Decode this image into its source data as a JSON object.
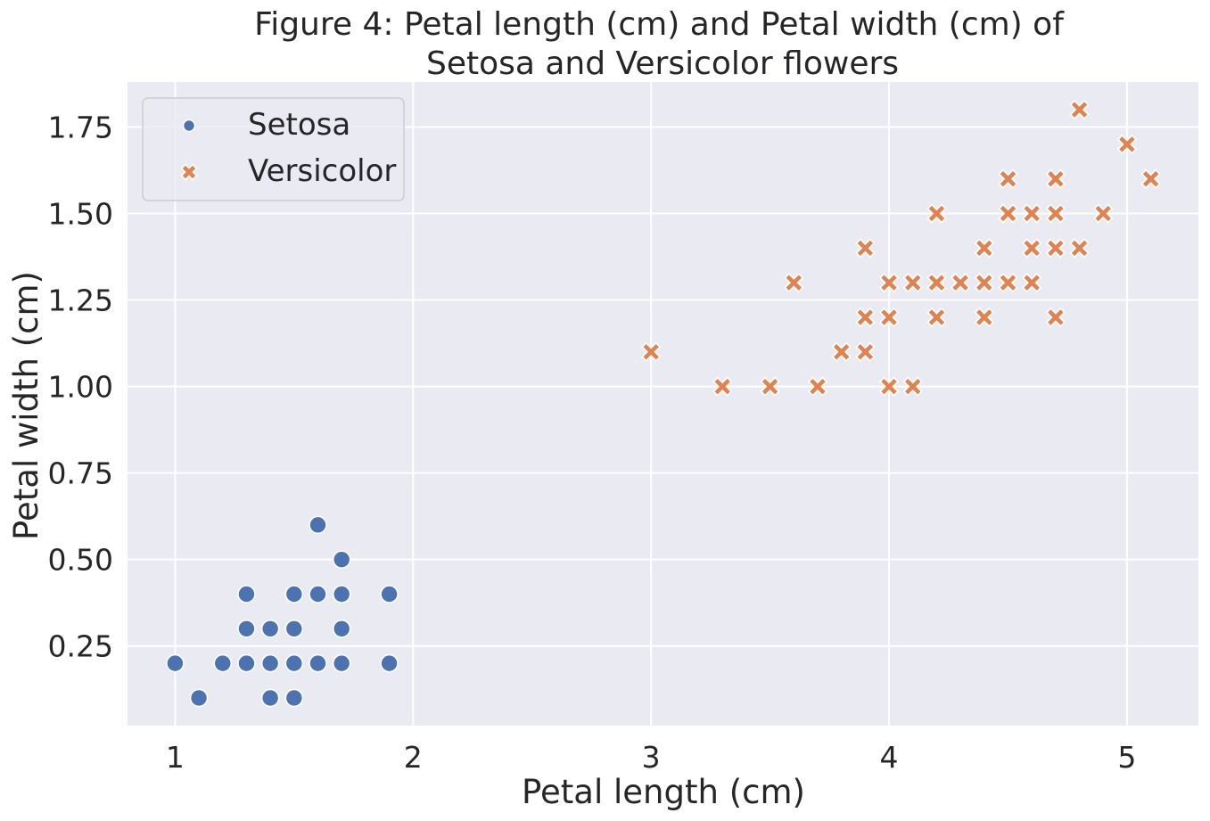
{
  "chart_data": {
    "type": "scatter",
    "title": [
      "Figure 4: Petal length (cm) and Petal width (cm) of",
      "Setosa and Versicolor flowers"
    ],
    "xlabel": "Petal length (cm)",
    "ylabel": "Petal width (cm)",
    "xlim": [
      0.8,
      5.3
    ],
    "ylim": [
      0.02,
      1.88
    ],
    "xticks": [
      1,
      2,
      3,
      4,
      5
    ],
    "xtick_labels": [
      "1",
      "2",
      "3",
      "4",
      "5"
    ],
    "yticks": [
      0.25,
      0.5,
      0.75,
      1.0,
      1.25,
      1.5,
      1.75
    ],
    "ytick_labels": [
      "0.25",
      "0.50",
      "0.75",
      "1.00",
      "1.25",
      "1.50",
      "1.75"
    ],
    "grid": true,
    "legend_position": "top-left",
    "series": [
      {
        "name": "Setosa",
        "marker": "circle",
        "color": "#4c72b0",
        "points": [
          [
            1.0,
            0.2
          ],
          [
            1.1,
            0.1
          ],
          [
            1.2,
            0.2
          ],
          [
            1.3,
            0.2
          ],
          [
            1.3,
            0.3
          ],
          [
            1.3,
            0.4
          ],
          [
            1.4,
            0.1
          ],
          [
            1.4,
            0.2
          ],
          [
            1.4,
            0.3
          ],
          [
            1.5,
            0.1
          ],
          [
            1.5,
            0.2
          ],
          [
            1.5,
            0.3
          ],
          [
            1.5,
            0.4
          ],
          [
            1.6,
            0.2
          ],
          [
            1.6,
            0.4
          ],
          [
            1.6,
            0.6
          ],
          [
            1.7,
            0.2
          ],
          [
            1.7,
            0.3
          ],
          [
            1.7,
            0.4
          ],
          [
            1.7,
            0.5
          ],
          [
            1.9,
            0.2
          ],
          [
            1.9,
            0.4
          ]
        ]
      },
      {
        "name": "Versicolor",
        "marker": "x",
        "color": "#dd8452",
        "points": [
          [
            3.0,
            1.1
          ],
          [
            3.3,
            1.0
          ],
          [
            3.5,
            1.0
          ],
          [
            3.6,
            1.3
          ],
          [
            3.7,
            1.0
          ],
          [
            3.8,
            1.1
          ],
          [
            3.9,
            1.1
          ],
          [
            3.9,
            1.2
          ],
          [
            3.9,
            1.4
          ],
          [
            4.0,
            1.0
          ],
          [
            4.0,
            1.2
          ],
          [
            4.0,
            1.3
          ],
          [
            4.1,
            1.0
          ],
          [
            4.1,
            1.3
          ],
          [
            4.2,
            1.2
          ],
          [
            4.2,
            1.3
          ],
          [
            4.2,
            1.5
          ],
          [
            4.3,
            1.3
          ],
          [
            4.4,
            1.2
          ],
          [
            4.4,
            1.3
          ],
          [
            4.4,
            1.4
          ],
          [
            4.5,
            1.3
          ],
          [
            4.5,
            1.5
          ],
          [
            4.5,
            1.6
          ],
          [
            4.6,
            1.3
          ],
          [
            4.6,
            1.4
          ],
          [
            4.6,
            1.5
          ],
          [
            4.7,
            1.2
          ],
          [
            4.7,
            1.4
          ],
          [
            4.7,
            1.5
          ],
          [
            4.7,
            1.6
          ],
          [
            4.8,
            1.4
          ],
          [
            4.8,
            1.8
          ],
          [
            4.9,
            1.5
          ],
          [
            5.0,
            1.7
          ],
          [
            5.1,
            1.6
          ]
        ]
      }
    ]
  }
}
